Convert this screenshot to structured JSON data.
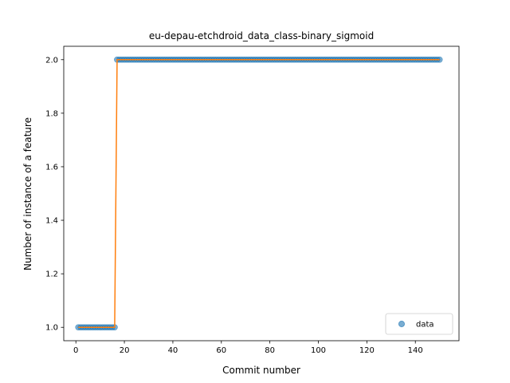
{
  "chart_data": {
    "type": "scatter",
    "title": "eu-depau-etchdroid_data_class-binary_sigmoid",
    "xlabel": "Commit number",
    "ylabel": "Number of instance of a feature",
    "xlim": [
      -5,
      158
    ],
    "ylim": [
      0.95,
      2.05
    ],
    "xticks": [
      0,
      20,
      40,
      60,
      80,
      100,
      120,
      140
    ],
    "yticks": [
      1.0,
      1.2,
      1.4,
      1.6,
      1.8,
      2.0
    ],
    "ytick_labels": [
      "1.0",
      "1.2",
      "1.4",
      "1.6",
      "1.8",
      "2.0"
    ],
    "grid": false,
    "legend_position": "lower-right",
    "series": [
      {
        "name": "data",
        "kind": "scatter",
        "color": "#1f77b4",
        "segments": [
          {
            "x_start": 1,
            "x_end": 16,
            "y": 1.0
          },
          {
            "x_start": 17,
            "x_end": 150,
            "y": 2.0
          }
        ]
      },
      {
        "kind": "line",
        "color": "#ff7f0e",
        "segments": [
          {
            "x_start": 1,
            "x_end": 16,
            "y": 1.0
          },
          {
            "x_start": 17,
            "x_end": 150,
            "y": 2.0
          }
        ]
      }
    ]
  }
}
